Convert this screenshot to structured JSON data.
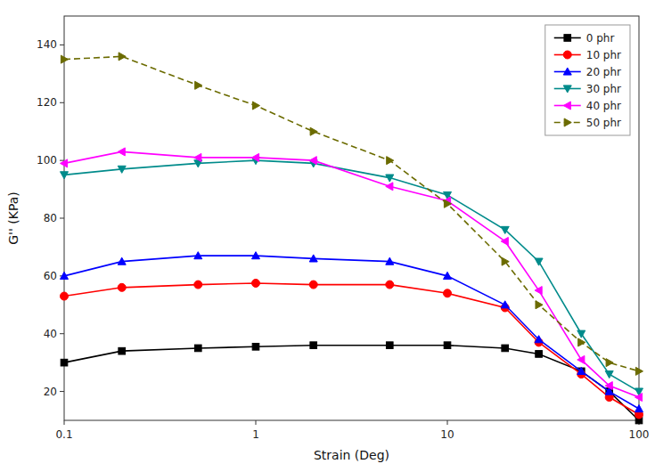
{
  "chart_data": {
    "type": "line",
    "xlabel": "Strain (Deg)",
    "ylabel": "G'' (KPa)",
    "log": "x",
    "grid": false,
    "legend": "upper right",
    "xlim": [
      0.1,
      100
    ],
    "xticks": [
      0.1,
      1,
      10,
      100
    ],
    "ylim": [
      10,
      150
    ],
    "yticks": [
      20,
      40,
      60,
      80,
      100,
      120,
      140
    ],
    "x": [
      0.1,
      0.2,
      0.5,
      1.0,
      2.0,
      5.0,
      10.0,
      20.0,
      30.0,
      50.0,
      70.0,
      100.0
    ],
    "series": [
      {
        "name": "0 phr",
        "color": "#000000",
        "marker": "square",
        "line_style": "solid",
        "values": [
          30,
          34,
          35,
          35.5,
          36,
          36,
          36,
          35,
          33,
          27,
          20,
          10
        ]
      },
      {
        "name": "10 phr",
        "color": "#ff0000",
        "marker": "circle",
        "line_style": "solid",
        "values": [
          53,
          56,
          57,
          57.5,
          57,
          57,
          54,
          49,
          37,
          26,
          18,
          12
        ]
      },
      {
        "name": "20 phr",
        "color": "#0000ff",
        "marker": "triangle-up",
        "line_style": "solid",
        "values": [
          60,
          65,
          67,
          67,
          66,
          65,
          60,
          50,
          38,
          27,
          20,
          14
        ]
      },
      {
        "name": "30 phr",
        "color": "#008B8B",
        "marker": "triangle-down",
        "line_style": "solid",
        "values": [
          95,
          97,
          99,
          100,
          99,
          94,
          88,
          76,
          65,
          40,
          26,
          20
        ]
      },
      {
        "name": "40 phr",
        "color": "#ff00ff",
        "marker": "triangle-left",
        "line_style": "solid",
        "values": [
          99,
          103,
          101,
          101,
          100,
          91,
          86,
          72,
          55,
          31,
          22,
          18
        ]
      },
      {
        "name": "50 phr",
        "color": "#6B6B00",
        "marker": "triangle-right",
        "line_style": "dashed",
        "values": [
          135,
          136,
          126,
          119,
          110,
          100,
          85,
          65,
          50,
          37,
          30,
          27
        ]
      }
    ]
  }
}
